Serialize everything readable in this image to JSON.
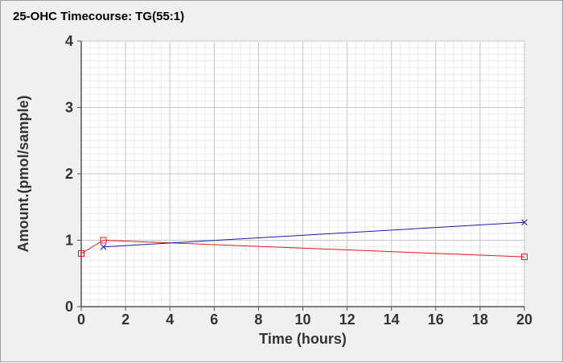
{
  "chart_data": {
    "type": "line",
    "title": "25-OHC Timecourse: TG(55:1)",
    "xlabel": "Time (hours)",
    "ylabel": "Amount.(pmol/sample)",
    "xlim": [
      0,
      20
    ],
    "ylim": [
      0,
      4
    ],
    "x_ticks": [
      "0",
      "2",
      "4",
      "6",
      "8",
      "10",
      "12",
      "14",
      "16",
      "18",
      "20"
    ],
    "y_ticks": [
      "0",
      "1",
      "2",
      "3",
      "4"
    ],
    "grid": true,
    "series": [
      {
        "marker": "square",
        "color": "#e41a1c",
        "x": [
          0,
          1,
          20
        ],
        "y": [
          0.8,
          1.0,
          0.75
        ]
      },
      {
        "marker": "x",
        "color": "#1a1aa8",
        "x": [
          1,
          20
        ],
        "y": [
          0.9,
          1.27
        ]
      }
    ]
  }
}
